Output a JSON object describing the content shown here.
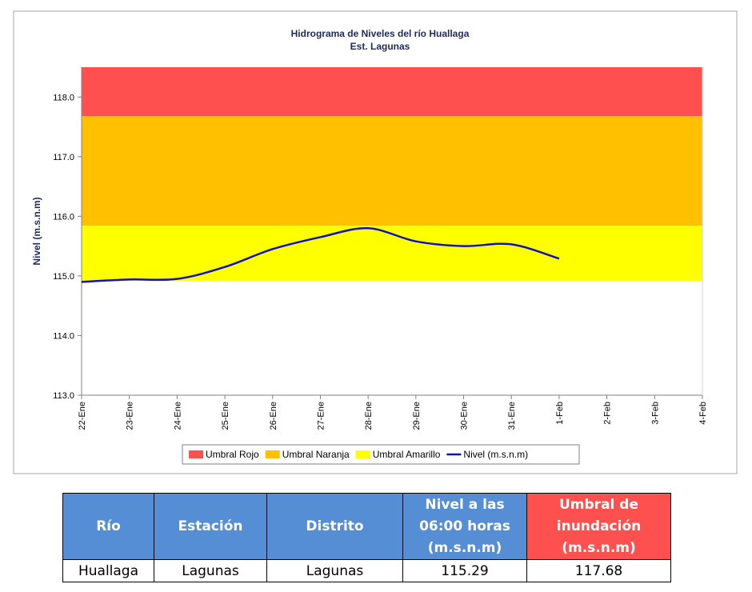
{
  "chart_data": {
    "type": "line",
    "title": "Hidrograma de Niveles del río Huallaga",
    "subtitle": "Est. Lagunas",
    "y_label": "Nivel (m.s.n.m)",
    "categories": [
      "22-Ene",
      "23-Ene",
      "24-Ene",
      "25-Ene",
      "26-Ene",
      "27-Ene",
      "28-Ene",
      "29-Ene",
      "30-Ene",
      "31-Ene",
      "1-Feb",
      "2-Feb",
      "3-Feb",
      "4-Feb"
    ],
    "series": [
      {
        "name": "Nivel (m.s.n.m)",
        "color": "#1010c8",
        "values": [
          114.9,
          114.94,
          114.95,
          115.15,
          115.45,
          115.65,
          115.8,
          115.58,
          115.5,
          115.53,
          115.29,
          null,
          null,
          null
        ]
      }
    ],
    "bands": [
      {
        "name": "Umbral Rojo",
        "color": "#ff5050",
        "from": 117.68
      },
      {
        "name": "Umbral Naranja",
        "color": "#ffc000",
        "from": 115.84
      },
      {
        "name": "Umbral Amarillo",
        "color": "#ffff00",
        "from": 114.92
      }
    ],
    "ylim": [
      113,
      118.5
    ],
    "yticks": [
      {
        "value": 113,
        "label": "113.0"
      },
      {
        "value": 114,
        "label": "114.0"
      },
      {
        "value": 115,
        "label": "115.0"
      },
      {
        "value": 116,
        "label": "116.0"
      },
      {
        "value": 117,
        "label": "117.0"
      },
      {
        "value": 118,
        "label": "118.0"
      }
    ]
  },
  "table": {
    "header": [
      "Río",
      "Estación",
      "Distrito",
      "Nivel a las 06:00 horas (m.s.n.m)",
      "Umbral de inundación (m.s.n.m)"
    ],
    "rows": [
      [
        "Huallaga",
        "Lagunas",
        "Lagunas",
        115.29,
        117.68
      ]
    ]
  }
}
